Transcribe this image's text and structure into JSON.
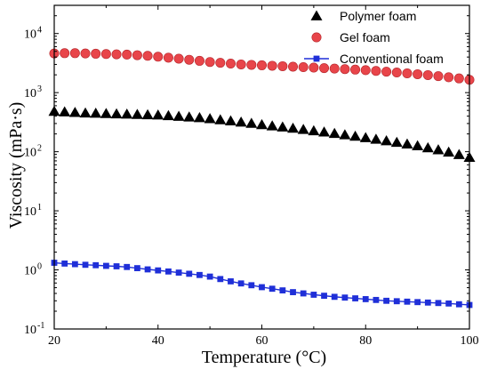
{
  "chart_data": {
    "type": "scatter",
    "title": "",
    "xlabel": "Temperature (°C)",
    "ylabel": "Viscosity (mPa·s)",
    "xlim": [
      20,
      100
    ],
    "ylim": [
      0.1,
      30000
    ],
    "yscale": "log",
    "grid": false,
    "legend_position": "top-right",
    "x_ticks": [
      "20",
      "40",
      "60",
      "80",
      "100"
    ],
    "x_tick_values": [
      20,
      40,
      60,
      80,
      100
    ],
    "y_ticks": [
      {
        "value": 0.1,
        "base": "10",
        "exp": "-1"
      },
      {
        "value": 1,
        "base": "10",
        "exp": "0"
      },
      {
        "value": 10,
        "base": "10",
        "exp": "1"
      },
      {
        "value": 100,
        "base": "10",
        "exp": "2"
      },
      {
        "value": 1000,
        "base": "10",
        "exp": "3"
      },
      {
        "value": 10000,
        "base": "10",
        "exp": "4"
      }
    ],
    "series": [
      {
        "name": "Polymer foam",
        "marker": "triangle",
        "color": "#000000",
        "line": false,
        "x": [
          20,
          22,
          24,
          26,
          28,
          30,
          32,
          34,
          36,
          38,
          40,
          42,
          44,
          46,
          48,
          50,
          52,
          54,
          56,
          58,
          60,
          62,
          64,
          66,
          68,
          70,
          72,
          74,
          76,
          78,
          80,
          82,
          84,
          86,
          88,
          90,
          92,
          94,
          96,
          98,
          100
        ],
        "y": [
          480,
          470,
          460,
          450,
          445,
          440,
          435,
          430,
          425,
          420,
          415,
          405,
          395,
          385,
          375,
          360,
          345,
          330,
          315,
          300,
          285,
          272,
          260,
          248,
          237,
          225,
          214,
          203,
          192,
          182,
          172,
          162,
          152,
          143,
          134,
          125,
          116,
          107,
          98,
          89,
          80
        ]
      },
      {
        "name": "Gel foam",
        "marker": "circle",
        "color": "#e8454a",
        "line": false,
        "x": [
          20,
          22,
          24,
          26,
          28,
          30,
          32,
          34,
          36,
          38,
          40,
          42,
          44,
          46,
          48,
          50,
          52,
          54,
          56,
          58,
          60,
          62,
          64,
          66,
          68,
          70,
          72,
          74,
          76,
          78,
          80,
          82,
          84,
          86,
          88,
          90,
          92,
          94,
          96,
          98,
          100
        ],
        "y": [
          4600,
          4650,
          4650,
          4600,
          4550,
          4500,
          4450,
          4400,
          4300,
          4200,
          4050,
          3900,
          3750,
          3600,
          3450,
          3300,
          3200,
          3100,
          3000,
          2950,
          2900,
          2850,
          2800,
          2750,
          2700,
          2650,
          2600,
          2550,
          2500,
          2450,
          2400,
          2330,
          2260,
          2190,
          2120,
          2050,
          1980,
          1900,
          1820,
          1740,
          1650
        ]
      },
      {
        "name": "Conventional foam",
        "marker": "square",
        "color": "#1f2fd8",
        "line": true,
        "x": [
          20,
          22,
          24,
          26,
          28,
          30,
          32,
          34,
          36,
          38,
          40,
          42,
          44,
          46,
          48,
          50,
          52,
          54,
          56,
          58,
          60,
          62,
          64,
          66,
          68,
          70,
          72,
          74,
          76,
          78,
          80,
          82,
          84,
          86,
          88,
          90,
          92,
          94,
          96,
          98,
          100
        ],
        "y": [
          1.32,
          1.28,
          1.25,
          1.22,
          1.2,
          1.17,
          1.15,
          1.12,
          1.07,
          1.02,
          0.98,
          0.94,
          0.9,
          0.86,
          0.82,
          0.77,
          0.7,
          0.64,
          0.59,
          0.55,
          0.51,
          0.48,
          0.45,
          0.42,
          0.4,
          0.38,
          0.365,
          0.35,
          0.34,
          0.33,
          0.32,
          0.31,
          0.3,
          0.295,
          0.29,
          0.285,
          0.28,
          0.275,
          0.27,
          0.262,
          0.255
        ]
      }
    ]
  }
}
